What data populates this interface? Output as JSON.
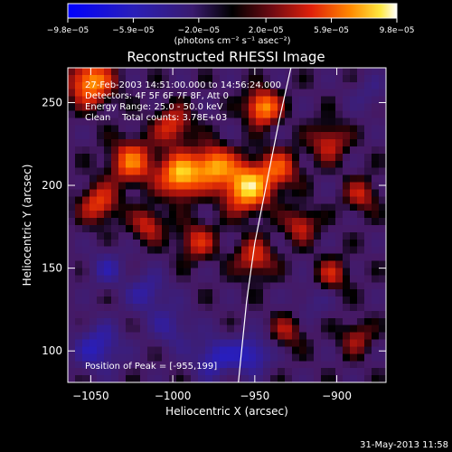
{
  "chart_data": {
    "type": "heatmap",
    "title": "Reconstructed RHESSI Image",
    "xlabel": "Heliocentric X (arcsec)",
    "ylabel": "Heliocentric Y (arcsec)",
    "xlim": [
      -1064,
      -870
    ],
    "ylim": [
      81,
      271
    ],
    "x_ticks": [
      {
        "v": -1050,
        "label": "−1050"
      },
      {
        "v": -1000,
        "label": "−1000"
      },
      {
        "v": -950,
        "label": "−950"
      },
      {
        "v": -900,
        "label": "−900"
      }
    ],
    "y_ticks": [
      {
        "v": 100,
        "label": "100"
      },
      {
        "v": 150,
        "label": "150"
      },
      {
        "v": 200,
        "label": "200"
      },
      {
        "v": 250,
        "label": "250"
      }
    ],
    "colorbar": {
      "range": [
        -9.8e-05,
        9.8e-05
      ],
      "ticks": [
        {
          "v": -9.8e-05,
          "label": "−9.8e−05"
        },
        {
          "v": -5.9e-05,
          "label": "−5.9e−05"
        },
        {
          "v": -2e-05,
          "label": "−2.0e−05"
        },
        {
          "v": 2e-05,
          "label": "2.0e−05"
        },
        {
          "v": 5.9e-05,
          "label": "5.9e−05"
        },
        {
          "v": 9.8e-05,
          "label": "9.8e−05"
        }
      ],
      "unit_label": "(photons cm⁻² s⁻¹ asec⁻²)"
    },
    "info_lines": [
      "27-Feb-2003 14:51:00.000 to 14:56:24.000",
      "Detectors: 4F 5F 6F 7F 8F, Att 0",
      "Energy Range: 25.0 - 50.0 keV",
      "Clean    Total counts: 3.78E+03"
    ],
    "peak_label": "Position of Peak = [-955,199]",
    "peak": [
      -955,
      199
    ],
    "hot_blobs": [
      {
        "x": -955,
        "y": 199,
        "a": 1.0,
        "s": 10
      },
      {
        "x": -995,
        "y": 206,
        "a": 0.95,
        "s": 9
      },
      {
        "x": -975,
        "y": 212,
        "a": 0.8,
        "s": 8
      },
      {
        "x": -945,
        "y": 247,
        "a": 0.85,
        "s": 7
      },
      {
        "x": -1050,
        "y": 262,
        "a": 0.85,
        "s": 9
      },
      {
        "x": -1025,
        "y": 214,
        "a": 0.7,
        "s": 9
      },
      {
        "x": -1045,
        "y": 189,
        "a": 0.55,
        "s": 8
      },
      {
        "x": -1015,
        "y": 176,
        "a": 0.45,
        "s": 7
      },
      {
        "x": -985,
        "y": 166,
        "a": 0.45,
        "s": 8
      },
      {
        "x": -950,
        "y": 156,
        "a": 0.5,
        "s": 8
      },
      {
        "x": -935,
        "y": 210,
        "a": 0.55,
        "s": 8
      },
      {
        "x": -922,
        "y": 176,
        "a": 0.45,
        "s": 7
      },
      {
        "x": -905,
        "y": 226,
        "a": 0.45,
        "s": 8
      },
      {
        "x": -885,
        "y": 194,
        "a": 0.4,
        "s": 7
      },
      {
        "x": -903,
        "y": 146,
        "a": 0.4,
        "s": 7
      },
      {
        "x": -930,
        "y": 112,
        "a": 0.35,
        "s": 7
      },
      {
        "x": -888,
        "y": 108,
        "a": 0.35,
        "s": 7
      },
      {
        "x": -1000,
        "y": 236,
        "a": 0.5,
        "s": 8
      }
    ],
    "cold_blobs": [
      {
        "x": -1045,
        "y": 102,
        "a": 0.45,
        "s": 10
      },
      {
        "x": -1015,
        "y": 135,
        "a": 0.35,
        "s": 9
      },
      {
        "x": -975,
        "y": 96,
        "a": 0.45,
        "s": 9
      },
      {
        "x": -952,
        "y": 98,
        "a": 0.5,
        "s": 8
      },
      {
        "x": -1040,
        "y": 150,
        "a": 0.3,
        "s": 8
      },
      {
        "x": -1000,
        "y": 114,
        "a": 0.3,
        "s": 9
      },
      {
        "x": -915,
        "y": 130,
        "a": 0.2,
        "s": 8
      },
      {
        "x": -880,
        "y": 255,
        "a": 0.2,
        "s": 8
      }
    ],
    "limb": [
      [
        -960,
        81
      ],
      [
        -955,
        130
      ],
      [
        -950,
        165
      ],
      [
        -943,
        200
      ],
      [
        -935,
        240
      ],
      [
        -928,
        271
      ]
    ]
  },
  "footer": {
    "timestamp": "31-May-2013 11:58"
  }
}
